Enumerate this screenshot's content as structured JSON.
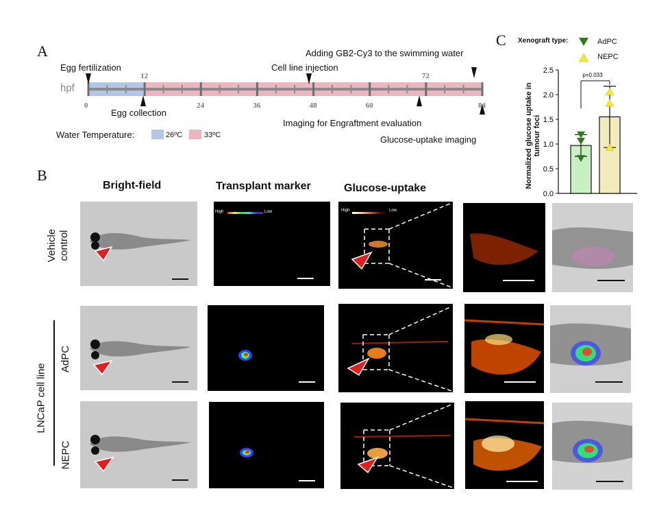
{
  "panels": {
    "a": "A",
    "b": "B",
    "c": "C"
  },
  "timeline": {
    "axis_label": "hpf",
    "ticks": [
      "0",
      "12",
      "24",
      "36",
      "48",
      "60",
      "72",
      "84"
    ],
    "tick_hours": [
      0,
      12,
      24,
      36,
      48,
      60,
      72,
      84
    ],
    "events_above": [
      "Egg fertilization",
      "Cell line injection",
      "Adding GB2-Cy3 to the swimming water"
    ],
    "events_below": [
      "Egg collection",
      "Imaging for Engraftment evaluation",
      "Glucose-uptake imaging"
    ],
    "temp_label": "Water Temperature:",
    "temp_26": "26ºC",
    "temp_33": "33ºC",
    "colors": {
      "cool": "#b4c6e7",
      "warm": "#eab6c0",
      "bar": "#8a8a8a"
    }
  },
  "gallery": {
    "col_titles": [
      "Bright-field",
      "Transplant marker",
      "Glucose-uptake"
    ],
    "row_labels": [
      "Vehicle control",
      "AdPC",
      "NEPC"
    ],
    "group_label": "LNCaP cell line",
    "colorbar": {
      "high": "High",
      "low": "Low"
    }
  },
  "chart_data": {
    "type": "bar",
    "legend_title": "Xenograft type:",
    "categories": [
      "AdPC",
      "NEPC"
    ],
    "values": [
      0.97,
      1.55
    ],
    "errors": [
      0.22,
      0.62
    ],
    "points": [
      [
        1.2,
        1.07,
        0.72
      ],
      [
        2.05,
        1.82,
        0.92
      ]
    ],
    "colors": [
      "#c8f0c2",
      "#f0ecbe"
    ],
    "marker_colors": [
      "#2d7d1a",
      "#f2ea2e"
    ],
    "ylabel": "Normalized glucose uptake in tumour foci",
    "ylim": [
      0,
      2.5
    ],
    "yticks": [
      "0.0",
      "0.5",
      "1.0",
      "1.5",
      "2.0",
      "2.5"
    ],
    "annotation": "p=0.033"
  }
}
